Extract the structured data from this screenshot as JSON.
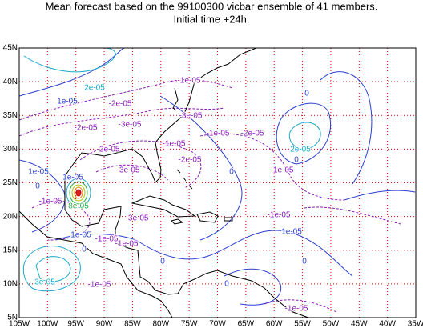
{
  "header": {
    "title": "Mean forecast based on the 99100300 vicbar ensemble of 41 members.",
    "subtitle": "Initial time +24h."
  },
  "axes": {
    "x_labels": [
      "105W",
      "100W",
      "95W",
      "90W",
      "85W",
      "80W",
      "75W",
      "70W",
      "65W",
      "60W",
      "55W",
      "50W",
      "45W",
      "40W",
      "35W"
    ],
    "y_labels": [
      "5N",
      "10N",
      "15N",
      "20N",
      "25N",
      "30N",
      "35N",
      "40N",
      "45N"
    ]
  },
  "contour_labels": [
    "2e-05",
    "1e-05",
    "-2e-05",
    "-2e-05",
    "-3e-05",
    "-1e-05",
    "-3e-05",
    "-2e-05",
    "-1e-05",
    "-1e-05",
    "-2e-05",
    "-2e-05",
    "-3e-05",
    "1e-05",
    "0",
    "1e-05",
    "-1e-05",
    "8e-05",
    "0",
    "2e-05",
    "0",
    "-1e-05",
    "0",
    "-1e-05",
    "1e-05",
    "-3e-05",
    "-1e-05",
    "1e-05",
    "-1e-05",
    "0",
    "0",
    "0",
    "0",
    "3e-05",
    "-1e-05",
    "-1e-05"
  ]
}
